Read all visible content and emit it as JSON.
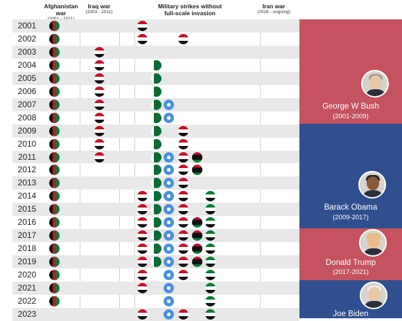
{
  "headers": {
    "afghanistan": {
      "title": "Afghanistan war",
      "sub": "(2001 - 2021)"
    },
    "iraq": {
      "title": "Iraq war",
      "sub": "(2003 - 2011)"
    },
    "strikes": {
      "title": "Military strikes without",
      "title2": "full-scale invasion"
    },
    "iran": {
      "title": "Iran war",
      "sub": "(2026 - ongoing)"
    }
  },
  "presidents": [
    {
      "name": "George W Bush",
      "years": "(2001-2009)",
      "color": "#c4525f"
    },
    {
      "name": "Barack Obama",
      "years": "(2009-2017)",
      "color": "#2f4f8f"
    },
    {
      "name": "Donald Trump",
      "years": "(2017-2021)",
      "color": "#c4525f"
    },
    {
      "name": "Joe Biden",
      "years": "",
      "color": "#2f4f8f"
    }
  ],
  "colors": {
    "row_shade": "#e8e8e8",
    "divider": "#cfcfcf",
    "republican": "#c4525f",
    "democrat": "#2f4f8f"
  },
  "chart_data": {
    "type": "table",
    "categories": [
      "afghanistan-icon",
      "iraq-icon",
      "yemen-icon",
      "pakistan-icon",
      "somalia-icon",
      "syria-icon",
      "libya-icon",
      "yemen-icon-2"
    ],
    "rows": [
      {
        "year": "2001",
        "flags": [
          "afghanistan-icon",
          "yemen-icon"
        ]
      },
      {
        "year": "2002",
        "flags": [
          "afghanistan-icon",
          "yemen-icon",
          "yemen-icon-2"
        ]
      },
      {
        "year": "2003",
        "flags": [
          "afghanistan-icon",
          "iraq-icon"
        ]
      },
      {
        "year": "2004",
        "flags": [
          "afghanistan-icon",
          "iraq-icon",
          "pakistan-icon"
        ]
      },
      {
        "year": "2005",
        "flags": [
          "afghanistan-icon",
          "iraq-icon",
          "pakistan-icon"
        ]
      },
      {
        "year": "2006",
        "flags": [
          "afghanistan-icon",
          "iraq-icon",
          "pakistan-icon"
        ]
      },
      {
        "year": "2007",
        "flags": [
          "afghanistan-icon",
          "iraq-icon",
          "pakistan-icon",
          "somalia-icon"
        ]
      },
      {
        "year": "2008",
        "flags": [
          "afghanistan-icon",
          "iraq-icon",
          "pakistan-icon",
          "somalia-icon"
        ]
      },
      {
        "year": "2009",
        "flags": [
          "afghanistan-icon",
          "iraq-icon",
          "pakistan-icon",
          "yemen-icon-2"
        ]
      },
      {
        "year": "2010",
        "flags": [
          "afghanistan-icon",
          "iraq-icon",
          "pakistan-icon",
          "yemen-icon-2"
        ]
      },
      {
        "year": "2011",
        "flags": [
          "afghanistan-icon",
          "iraq-icon",
          "pakistan-icon",
          "somalia-icon",
          "yemen-icon-2",
          "libya-icon"
        ]
      },
      {
        "year": "2012",
        "flags": [
          "afghanistan-icon",
          "pakistan-icon",
          "somalia-icon",
          "yemen-icon-2",
          "libya-icon"
        ]
      },
      {
        "year": "2013",
        "flags": [
          "afghanistan-icon",
          "pakistan-icon",
          "somalia-icon",
          "yemen-icon-2"
        ]
      },
      {
        "year": "2014",
        "flags": [
          "afghanistan-icon",
          "yemen-icon",
          "pakistan-icon",
          "somalia-icon",
          "yemen-icon-2",
          "syria-icon"
        ]
      },
      {
        "year": "2015",
        "flags": [
          "afghanistan-icon",
          "yemen-icon",
          "pakistan-icon",
          "somalia-icon",
          "yemen-icon-2",
          "syria-icon"
        ]
      },
      {
        "year": "2016",
        "flags": [
          "afghanistan-icon",
          "yemen-icon",
          "pakistan-icon",
          "somalia-icon",
          "yemen-icon-2",
          "libya-icon",
          "syria-icon"
        ]
      },
      {
        "year": "2017",
        "flags": [
          "afghanistan-icon",
          "yemen-icon",
          "pakistan-icon",
          "somalia-icon",
          "yemen-icon-2",
          "libya-icon",
          "syria-icon"
        ]
      },
      {
        "year": "2018",
        "flags": [
          "afghanistan-icon",
          "yemen-icon",
          "pakistan-icon",
          "somalia-icon",
          "yemen-icon-2",
          "libya-icon",
          "syria-icon"
        ]
      },
      {
        "year": "2019",
        "flags": [
          "afghanistan-icon",
          "yemen-icon",
          "pakistan-icon",
          "somalia-icon",
          "yemen-icon-2",
          "libya-icon",
          "syria-icon"
        ]
      },
      {
        "year": "2020",
        "flags": [
          "afghanistan-icon",
          "yemen-icon",
          "somalia-icon",
          "yemen-icon-2",
          "syria-icon"
        ]
      },
      {
        "year": "2021",
        "flags": [
          "afghanistan-icon",
          "yemen-icon",
          "somalia-icon",
          "syria-icon"
        ]
      },
      {
        "year": "2022",
        "flags": [
          "afghanistan-icon",
          "somalia-icon",
          "syria-icon"
        ]
      },
      {
        "year": "2023",
        "flags": [
          "yemen-icon",
          "somalia-icon",
          "yemen-icon-2",
          "syria-icon"
        ]
      }
    ]
  }
}
